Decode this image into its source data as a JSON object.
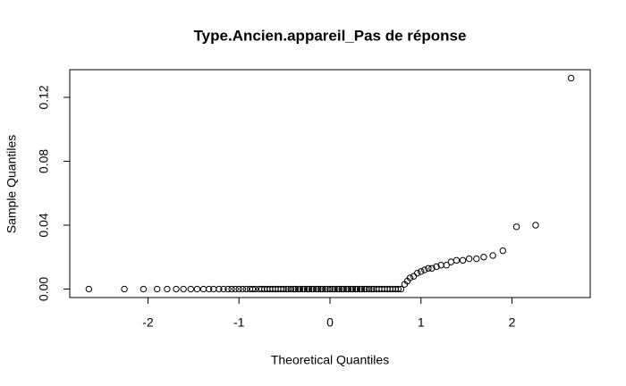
{
  "chart_data": {
    "type": "scatter",
    "title": "Type.Ancien.appareil_Pas de réponse",
    "x_label": "Theoretical Quantiles",
    "y_label": "Sample Quantiles",
    "x": [
      -2.65,
      -2.26,
      -2.05,
      -1.9,
      -1.79,
      -1.69,
      -1.61,
      -1.53,
      -1.46,
      -1.39,
      -1.33,
      -1.28,
      -1.22,
      -1.17,
      -1.12,
      -1.08,
      -1.04,
      -1.0,
      -0.96,
      -0.92,
      -0.88,
      -0.85,
      -0.82,
      -0.78,
      -0.75,
      -0.72,
      -0.69,
      -0.66,
      -0.63,
      -0.6,
      -0.57,
      -0.54,
      -0.51,
      -0.48,
      -0.46,
      -0.43,
      -0.4,
      -0.38,
      -0.35,
      -0.33,
      -0.3,
      -0.28,
      -0.25,
      -0.23,
      -0.2,
      -0.18,
      -0.15,
      -0.13,
      -0.1,
      -0.08,
      -0.05,
      -0.03,
      0,
      0.03,
      0.05,
      0.08,
      0.1,
      0.13,
      0.15,
      0.18,
      0.2,
      0.23,
      0.25,
      0.28,
      0.3,
      0.33,
      0.35,
      0.38,
      0.4,
      0.43,
      0.46,
      0.48,
      0.51,
      0.54,
      0.57,
      0.6,
      0.63,
      0.66,
      0.69,
      0.72,
      0.75,
      0.78,
      0.82,
      0.85,
      0.88,
      0.92,
      0.96,
      1.0,
      1.04,
      1.08,
      1.12,
      1.17,
      1.22,
      1.28,
      1.33,
      1.39,
      1.46,
      1.53,
      1.61,
      1.69,
      1.79,
      1.9,
      2.05,
      2.26,
      2.65
    ],
    "values": [
      0,
      0,
      0,
      0,
      0,
      0,
      0,
      0,
      0,
      0,
      0,
      0,
      0,
      0,
      0,
      0,
      0,
      0,
      0,
      0,
      0,
      0,
      0,
      0,
      0,
      0,
      0,
      0,
      0,
      0,
      0,
      0,
      0,
      0,
      0,
      0,
      0,
      0,
      0,
      0,
      0,
      0,
      0,
      0,
      0,
      0,
      0,
      0,
      0,
      0,
      0,
      0,
      0,
      0,
      0,
      0,
      0,
      0,
      0,
      0,
      0,
      0,
      0,
      0,
      0,
      0,
      0,
      0,
      0,
      0,
      0,
      0,
      0,
      0,
      0,
      0,
      0,
      0,
      0,
      0,
      0,
      0,
      0.003,
      0.005,
      0.007,
      0.008,
      0.01,
      0.011,
      0.012,
      0.013,
      0.013,
      0.014,
      0.015,
      0.015,
      0.017,
      0.018,
      0.018,
      0.019,
      0.019,
      0.02,
      0.021,
      0.024,
      0.039,
      0.04,
      0.132
    ],
    "color": "#000000",
    "xlim": [
      -2.86,
      2.86
    ],
    "ylim": [
      -0.0053,
      0.1373
    ],
    "xticks": [
      -2,
      -1,
      0,
      1,
      2
    ],
    "yticks": [
      {
        "value": 0,
        "label": "0.00"
      },
      {
        "value": 0.04,
        "label": "0.04"
      },
      {
        "value": 0.08,
        "label": "0.08"
      },
      {
        "value": 0.12,
        "label": "0.12"
      }
    ]
  }
}
